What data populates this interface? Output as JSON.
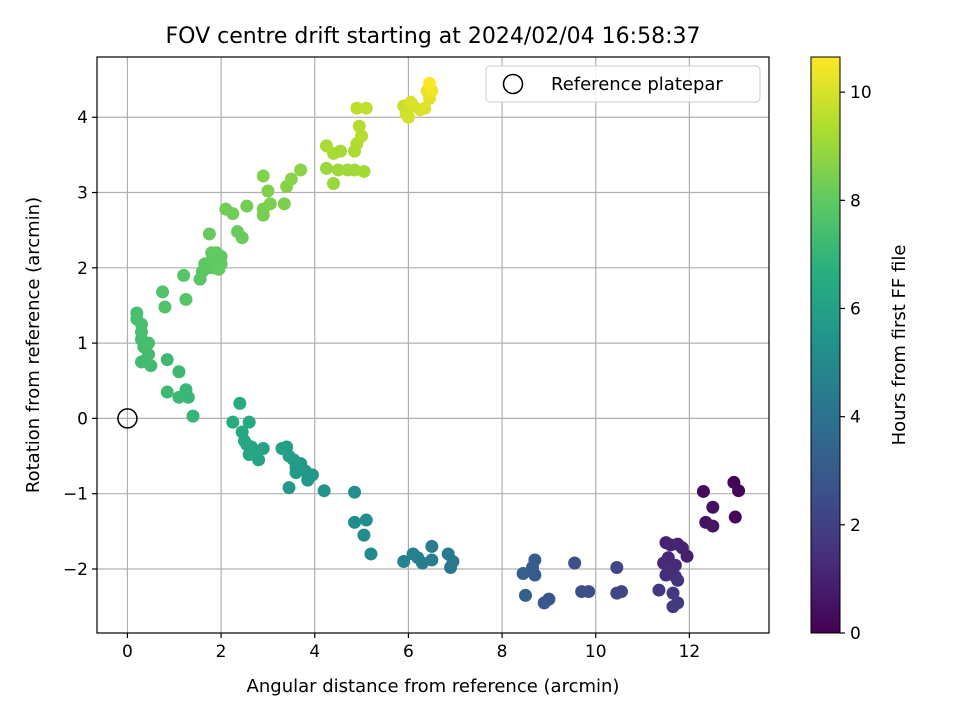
{
  "chart_data": {
    "type": "scatter",
    "title": "FOV centre drift starting at 2024/02/04 16:58:37",
    "xlabel": "Angular distance from reference (arcmin)",
    "ylabel": "Rotation from reference (arcmin)",
    "xlim": [
      -0.65,
      13.7
    ],
    "ylim": [
      -2.85,
      4.8
    ],
    "xticks": [
      0,
      2,
      4,
      6,
      8,
      10,
      12
    ],
    "yticks": [
      -2,
      -1,
      0,
      1,
      2,
      3,
      4
    ],
    "grid": true,
    "legend": {
      "position": "upper-right",
      "entries": [
        "Reference platepar"
      ]
    },
    "reference_point": {
      "name": "Reference platepar",
      "x": 0,
      "y": 0
    },
    "colorbar": {
      "label": "Hours from first FF file",
      "min": 0,
      "max": 10.65,
      "ticks": [
        0,
        2,
        4,
        6,
        8,
        10
      ],
      "colormap": "viridis"
    },
    "points": [
      {
        "x": 12.95,
        "y": -0.85,
        "c": 0.1
      },
      {
        "x": 13.05,
        "y": -0.96,
        "c": 0.15
      },
      {
        "x": 12.3,
        "y": -0.97,
        "c": 0.3
      },
      {
        "x": 12.98,
        "y": -1.31,
        "c": 0.2
      },
      {
        "x": 12.5,
        "y": -1.18,
        "c": 0.5
      },
      {
        "x": 12.35,
        "y": -1.38,
        "c": 0.55
      },
      {
        "x": 12.5,
        "y": -1.43,
        "c": 0.6
      },
      {
        "x": 11.95,
        "y": -1.83,
        "c": 0.9
      },
      {
        "x": 11.5,
        "y": -1.65,
        "c": 1.0
      },
      {
        "x": 11.6,
        "y": -1.68,
        "c": 1.05
      },
      {
        "x": 11.75,
        "y": -1.67,
        "c": 1.1
      },
      {
        "x": 11.55,
        "y": -1.85,
        "c": 1.15
      },
      {
        "x": 11.45,
        "y": -1.92,
        "c": 1.2
      },
      {
        "x": 11.7,
        "y": -1.95,
        "c": 1.25
      },
      {
        "x": 11.85,
        "y": -1.72,
        "c": 1.0
      },
      {
        "x": 11.5,
        "y": -2.08,
        "c": 1.4
      },
      {
        "x": 11.7,
        "y": -2.1,
        "c": 1.45
      },
      {
        "x": 11.75,
        "y": -2.15,
        "c": 1.5
      },
      {
        "x": 11.55,
        "y": -2.02,
        "c": 1.35
      },
      {
        "x": 11.35,
        "y": -2.28,
        "c": 1.7
      },
      {
        "x": 11.65,
        "y": -2.32,
        "c": 1.75
      },
      {
        "x": 11.75,
        "y": -2.45,
        "c": 1.8
      },
      {
        "x": 11.65,
        "y": -2.5,
        "c": 1.85
      },
      {
        "x": 10.55,
        "y": -2.3,
        "c": 2.2
      },
      {
        "x": 10.45,
        "y": -2.32,
        "c": 2.25
      },
      {
        "x": 10.45,
        "y": -1.98,
        "c": 2.3
      },
      {
        "x": 9.85,
        "y": -2.3,
        "c": 2.5
      },
      {
        "x": 9.7,
        "y": -2.3,
        "c": 2.55
      },
      {
        "x": 9.55,
        "y": -1.92,
        "c": 2.6
      },
      {
        "x": 9.0,
        "y": -2.4,
        "c": 2.8
      },
      {
        "x": 8.9,
        "y": -2.45,
        "c": 2.85
      },
      {
        "x": 8.7,
        "y": -2.08,
        "c": 3.0
      },
      {
        "x": 8.65,
        "y": -1.98,
        "c": 3.05
      },
      {
        "x": 8.7,
        "y": -1.88,
        "c": 3.1
      },
      {
        "x": 8.45,
        "y": -2.06,
        "c": 3.2
      },
      {
        "x": 8.5,
        "y": -2.35,
        "c": 3.25
      },
      {
        "x": 6.95,
        "y": -1.9,
        "c": 4.2
      },
      {
        "x": 6.9,
        "y": -1.98,
        "c": 4.25
      },
      {
        "x": 6.85,
        "y": -1.8,
        "c": 4.3
      },
      {
        "x": 6.5,
        "y": -1.7,
        "c": 4.4
      },
      {
        "x": 6.5,
        "y": -1.88,
        "c": 4.45
      },
      {
        "x": 6.3,
        "y": -1.92,
        "c": 4.5
      },
      {
        "x": 6.2,
        "y": -1.85,
        "c": 4.55
      },
      {
        "x": 6.1,
        "y": -1.8,
        "c": 4.6
      },
      {
        "x": 5.9,
        "y": -1.9,
        "c": 4.7
      },
      {
        "x": 5.2,
        "y": -1.8,
        "c": 5.0
      },
      {
        "x": 5.05,
        "y": -1.55,
        "c": 5.1
      },
      {
        "x": 5.1,
        "y": -1.35,
        "c": 5.15
      },
      {
        "x": 4.85,
        "y": -1.38,
        "c": 5.2
      },
      {
        "x": 4.85,
        "y": -0.98,
        "c": 5.3
      },
      {
        "x": 4.2,
        "y": -0.96,
        "c": 5.5
      },
      {
        "x": 3.95,
        "y": -0.75,
        "c": 5.6
      },
      {
        "x": 3.85,
        "y": -0.82,
        "c": 5.65
      },
      {
        "x": 3.8,
        "y": -0.7,
        "c": 5.7
      },
      {
        "x": 3.7,
        "y": -0.6,
        "c": 5.75
      },
      {
        "x": 3.6,
        "y": -0.72,
        "c": 5.8
      },
      {
        "x": 3.55,
        "y": -0.55,
        "c": 5.85
      },
      {
        "x": 3.45,
        "y": -0.5,
        "c": 5.9
      },
      {
        "x": 3.4,
        "y": -0.38,
        "c": 5.95
      },
      {
        "x": 3.3,
        "y": -0.4,
        "c": 6.0
      },
      {
        "x": 3.45,
        "y": -0.92,
        "c": 5.7
      },
      {
        "x": 3.6,
        "y": -0.65,
        "c": 5.8
      },
      {
        "x": 2.9,
        "y": -0.4,
        "c": 6.1
      },
      {
        "x": 2.8,
        "y": -0.55,
        "c": 6.15
      },
      {
        "x": 2.75,
        "y": -0.45,
        "c": 6.2
      },
      {
        "x": 2.65,
        "y": -0.38,
        "c": 6.25
      },
      {
        "x": 2.55,
        "y": -0.35,
        "c": 6.3
      },
      {
        "x": 2.6,
        "y": -0.48,
        "c": 6.3
      },
      {
        "x": 2.5,
        "y": -0.3,
        "c": 6.35
      },
      {
        "x": 2.45,
        "y": -0.18,
        "c": 6.4
      },
      {
        "x": 2.6,
        "y": -0.05,
        "c": 6.45
      },
      {
        "x": 2.25,
        "y": -0.05,
        "c": 6.5
      },
      {
        "x": 2.4,
        "y": 0.2,
        "c": 6.55
      },
      {
        "x": 1.4,
        "y": 0.03,
        "c": 7.0
      },
      {
        "x": 1.3,
        "y": 0.28,
        "c": 7.05
      },
      {
        "x": 1.25,
        "y": 0.38,
        "c": 7.1
      },
      {
        "x": 1.1,
        "y": 0.28,
        "c": 7.15
      },
      {
        "x": 0.85,
        "y": 0.35,
        "c": 7.2
      },
      {
        "x": 1.1,
        "y": 0.62,
        "c": 7.2
      },
      {
        "x": 0.85,
        "y": 0.78,
        "c": 7.25
      },
      {
        "x": 0.5,
        "y": 0.7,
        "c": 7.3
      },
      {
        "x": 0.4,
        "y": 0.78,
        "c": 7.3
      },
      {
        "x": 0.3,
        "y": 0.75,
        "c": 7.3
      },
      {
        "x": 0.45,
        "y": 0.85,
        "c": 7.35
      },
      {
        "x": 0.35,
        "y": 0.95,
        "c": 7.35
      },
      {
        "x": 0.45,
        "y": 1.0,
        "c": 7.4
      },
      {
        "x": 0.3,
        "y": 1.05,
        "c": 7.4
      },
      {
        "x": 0.3,
        "y": 1.15,
        "c": 7.45
      },
      {
        "x": 0.3,
        "y": 1.25,
        "c": 7.45
      },
      {
        "x": 0.2,
        "y": 1.32,
        "c": 7.5
      },
      {
        "x": 0.2,
        "y": 1.4,
        "c": 7.5
      },
      {
        "x": 0.75,
        "y": 1.68,
        "c": 7.7
      },
      {
        "x": 0.8,
        "y": 1.48,
        "c": 7.7
      },
      {
        "x": 1.25,
        "y": 1.58,
        "c": 7.8
      },
      {
        "x": 1.2,
        "y": 1.9,
        "c": 7.8
      },
      {
        "x": 1.55,
        "y": 1.85,
        "c": 7.85
      },
      {
        "x": 1.6,
        "y": 1.95,
        "c": 7.9
      },
      {
        "x": 1.75,
        "y": 2.0,
        "c": 7.9
      },
      {
        "x": 1.65,
        "y": 2.05,
        "c": 7.95
      },
      {
        "x": 1.85,
        "y": 2.0,
        "c": 7.95
      },
      {
        "x": 1.8,
        "y": 2.1,
        "c": 8.0
      },
      {
        "x": 1.9,
        "y": 2.2,
        "c": 8.0
      },
      {
        "x": 2.0,
        "y": 2.15,
        "c": 8.0
      },
      {
        "x": 1.8,
        "y": 2.2,
        "c": 8.05
      },
      {
        "x": 2.0,
        "y": 2.05,
        "c": 8.05
      },
      {
        "x": 1.95,
        "y": 1.98,
        "c": 8.05
      },
      {
        "x": 1.75,
        "y": 2.45,
        "c": 8.1
      },
      {
        "x": 2.35,
        "y": 2.48,
        "c": 8.15
      },
      {
        "x": 2.45,
        "y": 2.4,
        "c": 8.15
      },
      {
        "x": 2.1,
        "y": 2.78,
        "c": 8.3
      },
      {
        "x": 2.25,
        "y": 2.72,
        "c": 8.3
      },
      {
        "x": 2.55,
        "y": 2.82,
        "c": 8.35
      },
      {
        "x": 2.9,
        "y": 2.78,
        "c": 8.4
      },
      {
        "x": 2.9,
        "y": 2.7,
        "c": 8.4
      },
      {
        "x": 3.05,
        "y": 2.85,
        "c": 8.45
      },
      {
        "x": 3.35,
        "y": 2.85,
        "c": 8.5
      },
      {
        "x": 3.0,
        "y": 3.02,
        "c": 8.55
      },
      {
        "x": 2.9,
        "y": 3.22,
        "c": 8.6
      },
      {
        "x": 3.4,
        "y": 3.08,
        "c": 8.65
      },
      {
        "x": 3.5,
        "y": 3.18,
        "c": 8.7
      },
      {
        "x": 3.7,
        "y": 3.3,
        "c": 8.75
      },
      {
        "x": 4.25,
        "y": 3.32,
        "c": 9.0
      },
      {
        "x": 4.4,
        "y": 3.12,
        "c": 9.0
      },
      {
        "x": 4.5,
        "y": 3.3,
        "c": 9.05
      },
      {
        "x": 4.7,
        "y": 3.3,
        "c": 9.1
      },
      {
        "x": 4.85,
        "y": 3.3,
        "c": 9.1
      },
      {
        "x": 5.05,
        "y": 3.28,
        "c": 9.15
      },
      {
        "x": 4.4,
        "y": 3.52,
        "c": 9.2
      },
      {
        "x": 4.55,
        "y": 3.55,
        "c": 9.2
      },
      {
        "x": 4.25,
        "y": 3.62,
        "c": 9.25
      },
      {
        "x": 4.85,
        "y": 3.55,
        "c": 9.3
      },
      {
        "x": 4.9,
        "y": 3.65,
        "c": 9.35
      },
      {
        "x": 5.0,
        "y": 3.75,
        "c": 9.4
      },
      {
        "x": 4.95,
        "y": 3.88,
        "c": 9.45
      },
      {
        "x": 4.9,
        "y": 4.12,
        "c": 9.6
      },
      {
        "x": 5.1,
        "y": 4.12,
        "c": 9.65
      },
      {
        "x": 5.9,
        "y": 4.15,
        "c": 9.8
      },
      {
        "x": 5.95,
        "y": 4.05,
        "c": 9.85
      },
      {
        "x": 6.0,
        "y": 4.0,
        "c": 9.9
      },
      {
        "x": 6.1,
        "y": 4.15,
        "c": 9.95
      },
      {
        "x": 6.25,
        "y": 4.1,
        "c": 10.0
      },
      {
        "x": 6.05,
        "y": 4.2,
        "c": 10.05
      },
      {
        "x": 6.35,
        "y": 4.12,
        "c": 10.1
      },
      {
        "x": 6.45,
        "y": 4.25,
        "c": 10.2
      },
      {
        "x": 6.4,
        "y": 4.35,
        "c": 10.3
      },
      {
        "x": 6.5,
        "y": 4.35,
        "c": 10.4
      },
      {
        "x": 6.45,
        "y": 4.45,
        "c": 10.6
      }
    ]
  }
}
